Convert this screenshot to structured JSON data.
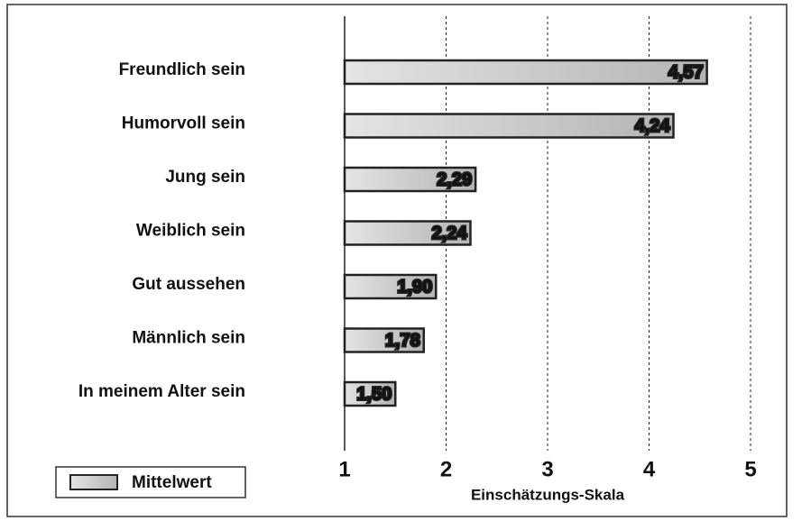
{
  "chart_data": {
    "type": "bar",
    "orientation": "horizontal",
    "categories": [
      "Freundlich sein",
      "Humorvoll sein",
      "Jung sein",
      "Weiblich sein",
      "Gut aussehen",
      "Männlich sein",
      "In meinem Alter sein"
    ],
    "series": [
      {
        "name": "Mittelwert",
        "color": "#c8c8c8",
        "values": [
          4.57,
          4.24,
          2.29,
          2.24,
          1.9,
          1.78,
          1.5
        ],
        "value_labels": [
          "4,57",
          "4,24",
          "2,29",
          "2,24",
          "1,90",
          "1,78",
          "1,50"
        ]
      }
    ],
    "xlabel": "Einschätzungs-Skala",
    "xlim": [
      1,
      5
    ],
    "xticks": [
      1,
      2,
      3,
      4,
      5
    ],
    "grid": true,
    "legend": "bottom-left"
  }
}
